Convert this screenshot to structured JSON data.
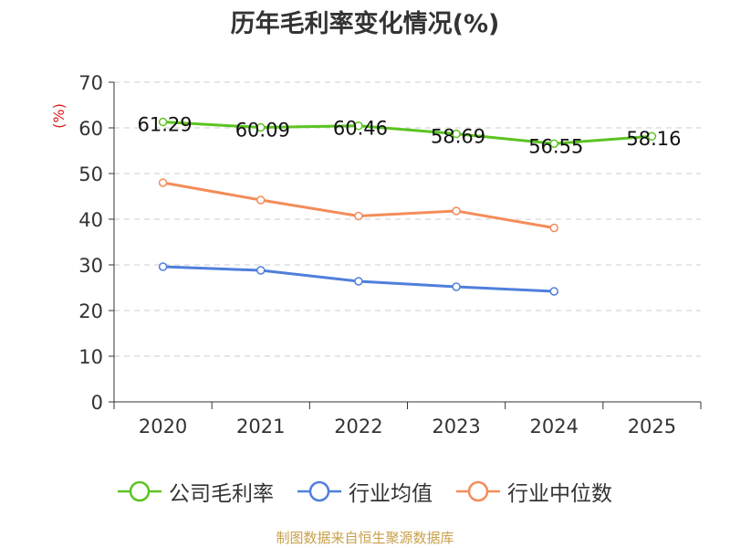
{
  "chart_data": {
    "type": "line",
    "title": "历年毛利率变化情况(%)",
    "ylabel": "(%)",
    "xlabel": "",
    "categories": [
      "2020",
      "2021",
      "2022",
      "2023",
      "2024",
      "2025"
    ],
    "ylim": [
      0,
      70
    ],
    "yticks": [
      0,
      10,
      20,
      30,
      40,
      50,
      60,
      70
    ],
    "grid": true,
    "legend_position": "bottom",
    "series": [
      {
        "name": "公司毛利率",
        "color": "#5cc322",
        "values": [
          61.29,
          60.09,
          60.46,
          58.69,
          56.55,
          58.16
        ],
        "labels": [
          "61.29",
          "60.09",
          "60.46",
          "58.69",
          "56.55",
          "58.16"
        ]
      },
      {
        "name": "行业均值",
        "color": "#4f7fdb",
        "values": [
          29.6,
          28.8,
          26.4,
          25.2,
          24.2,
          null
        ]
      },
      {
        "name": "行业中位数",
        "color": "#f48c5a",
        "values": [
          48.0,
          44.2,
          40.7,
          41.8,
          38.1,
          null
        ]
      }
    ],
    "source": "制图数据来自恒生聚源数据库"
  }
}
